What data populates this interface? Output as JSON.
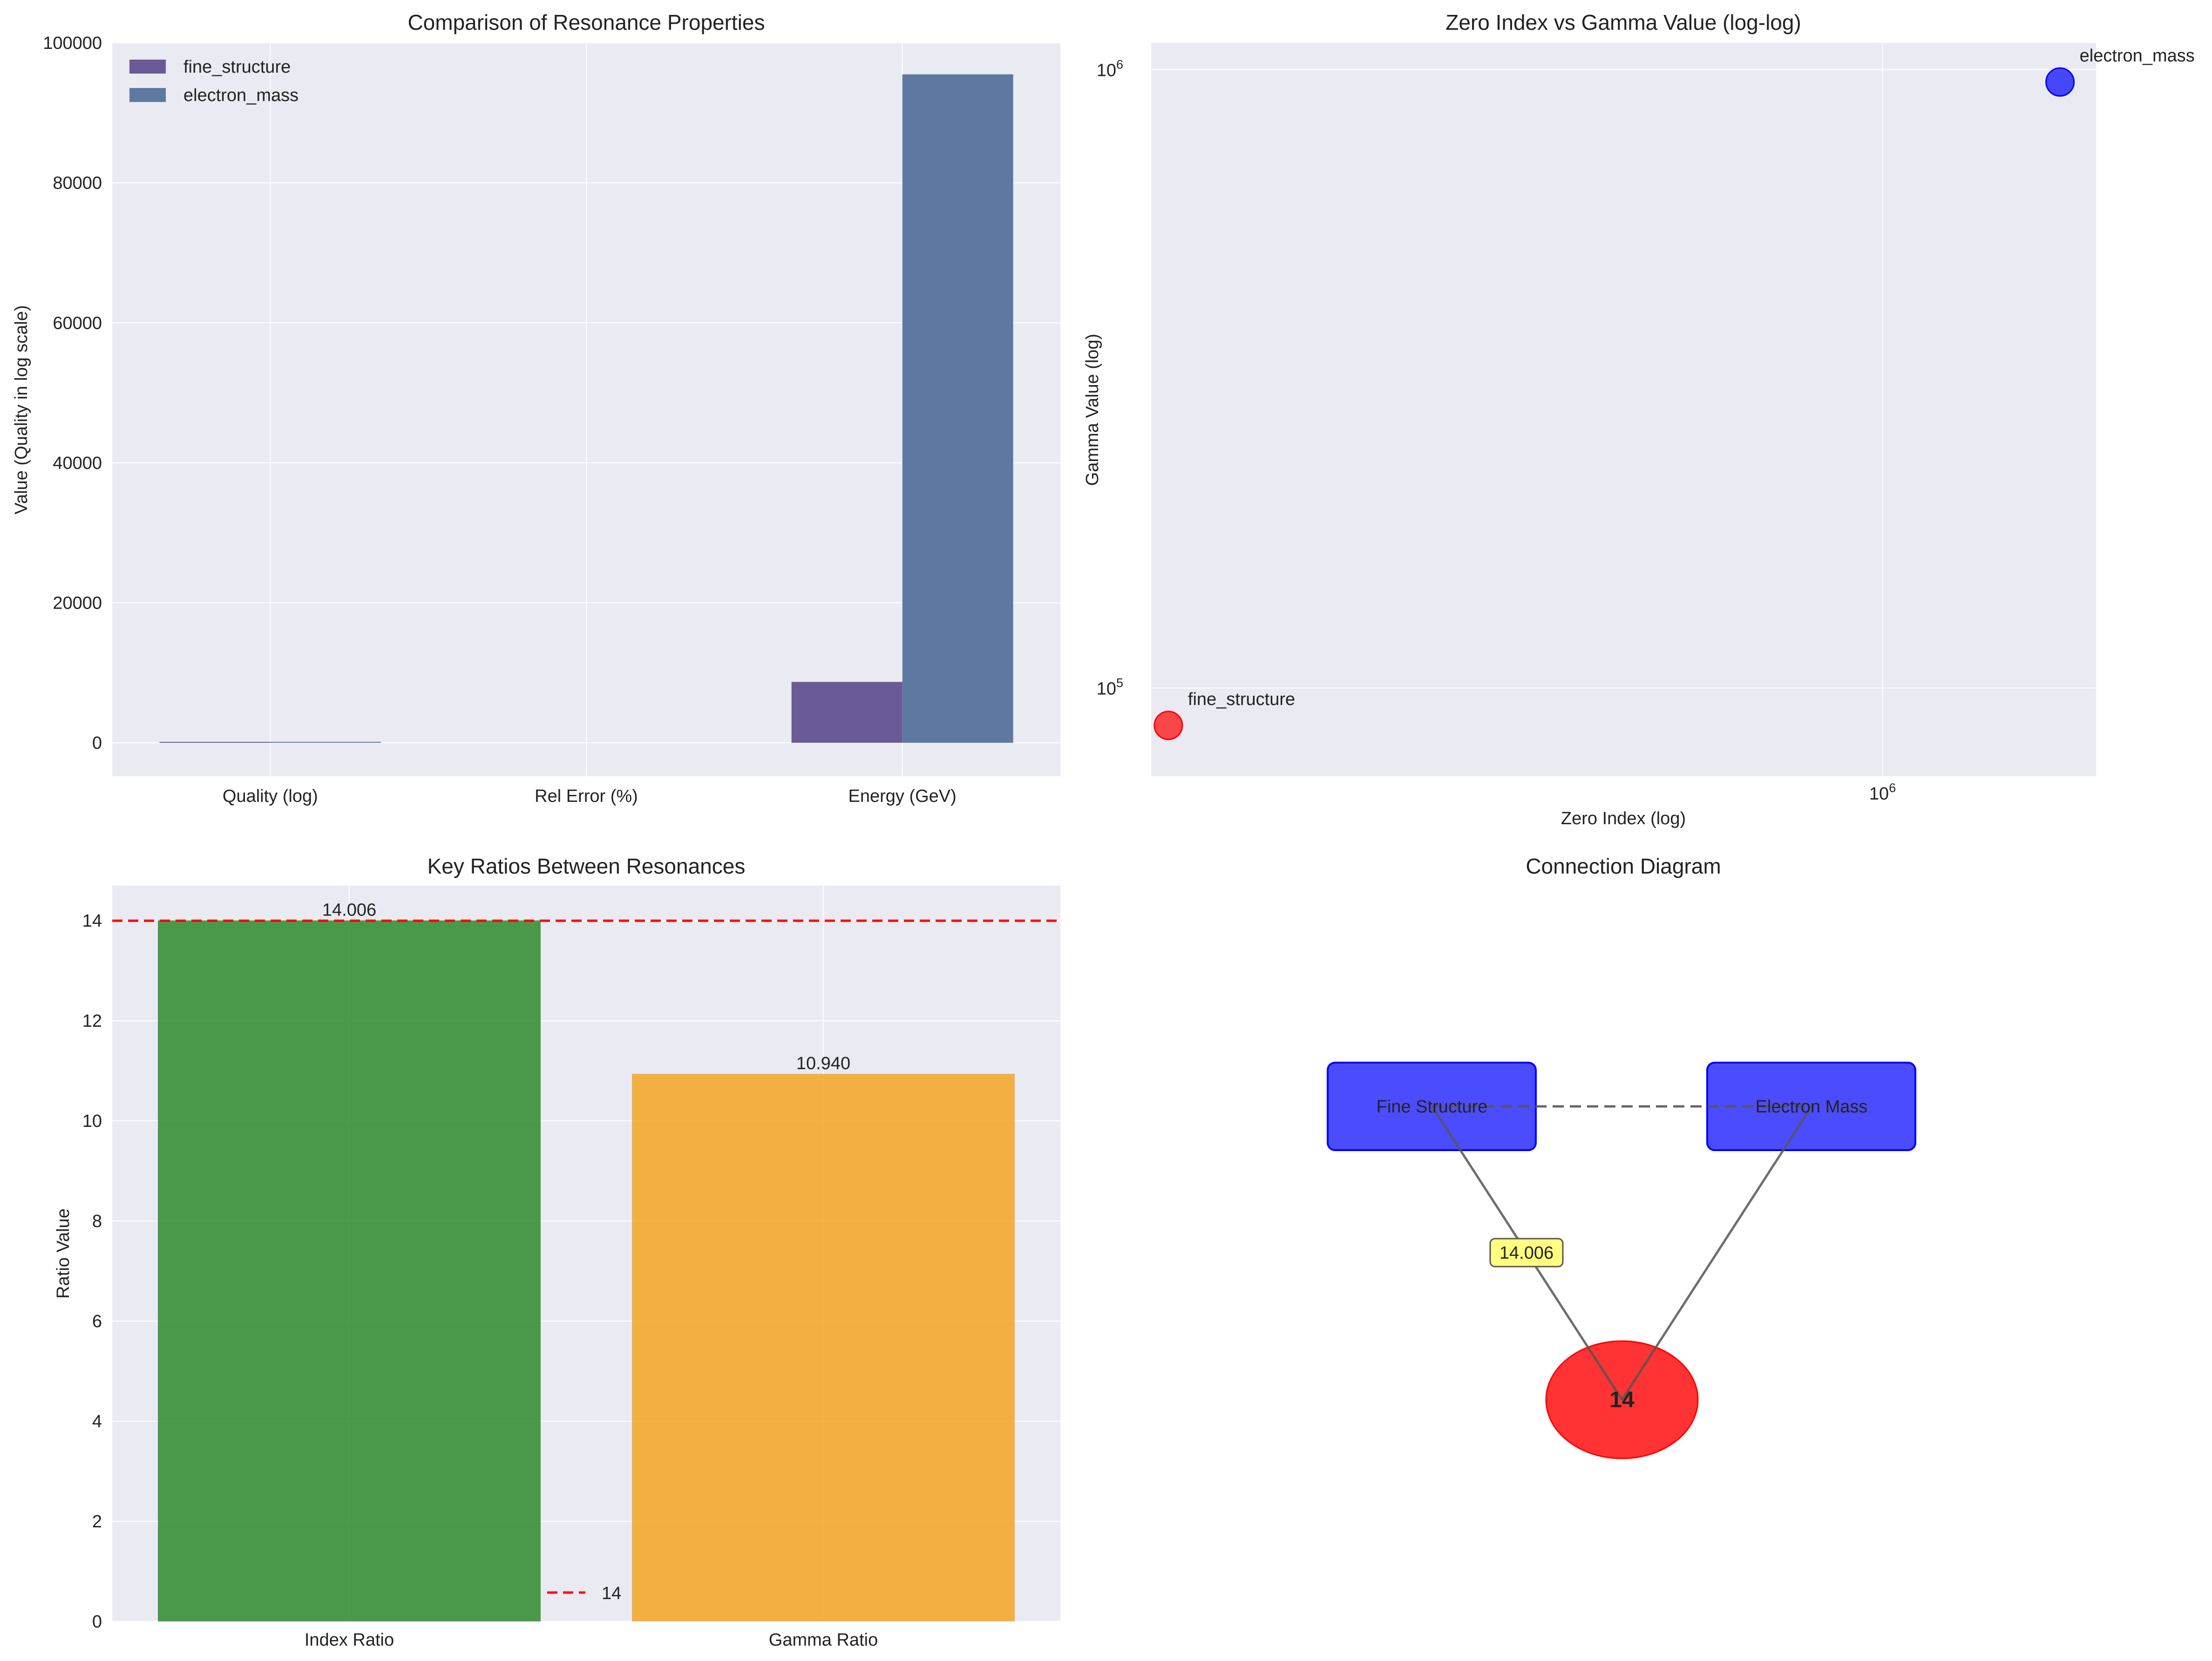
{
  "figure": {
    "background": "#ffffff",
    "plot_background": "#eaeaf2",
    "grid_color": "#ffffff"
  },
  "chart_data": [
    {
      "type": "bar",
      "title": "Comparison of Resonance Properties",
      "xlabel": "",
      "ylabel": "Value (Quality in log scale)",
      "categories": [
        "Quality (log)",
        "Rel Error (%)",
        "Energy (GeV)"
      ],
      "series": [
        {
          "name": "fine_structure",
          "color": "#6a5a96",
          "values": [
            9,
            0,
            8700
          ]
        },
        {
          "name": "electron_mass",
          "color": "#5e79a1",
          "values": [
            10,
            0,
            95500
          ]
        }
      ],
      "ylim": [
        -4780,
        100000
      ],
      "yticks": [
        0,
        20000,
        40000,
        60000,
        80000,
        100000
      ],
      "grid": true,
      "legend": "top-left"
    },
    {
      "type": "scatter",
      "title": "Zero Index vs Gamma Value (log-log)",
      "xlabel": "Zero Index (log)",
      "ylabel": "Gamma Value (log)",
      "xscale": "log",
      "yscale": "log",
      "xlim": [
        115000,
        1880000
      ],
      "ylim": [
        72000,
        1105000
      ],
      "xticks": [
        {
          "value": 1000000,
          "label": "10^6"
        }
      ],
      "yticks": [
        {
          "value": 100000,
          "label": "10^5"
        },
        {
          "value": 1000000,
          "label": "10^6"
        }
      ],
      "points": [
        {
          "label": "fine_structure",
          "x": 121000,
          "y": 87000,
          "color": "#ff0000"
        },
        {
          "label": "electron_mass",
          "x": 1690000,
          "y": 955000,
          "color": "#0000ff"
        }
      ],
      "grid": true
    },
    {
      "type": "bar",
      "title": "Key Ratios Between Resonances",
      "xlabel": "",
      "ylabel": "Ratio Value",
      "categories": [
        "Index Ratio",
        "Gamma Ratio"
      ],
      "values": [
        14.006,
        10.94
      ],
      "value_labels": [
        "14.006",
        "10.940"
      ],
      "colors": [
        "#2e8b2e",
        "#f5a623"
      ],
      "reference_line": {
        "value": 14,
        "label": "14",
        "color": "#ff0000"
      },
      "ylim": [
        0,
        14.7
      ],
      "yticks": [
        0,
        2,
        4,
        6,
        8,
        10,
        12,
        14
      ],
      "grid": true,
      "legend": "lower-center"
    },
    {
      "type": "diagram",
      "title": "Connection Diagram",
      "nodes": [
        {
          "id": "fine",
          "label": "Fine Structure",
          "shape": "box",
          "color": "#0000ff"
        },
        {
          "id": "electron",
          "label": "Electron Mass",
          "shape": "box",
          "color": "#0000ff"
        },
        {
          "id": "hub",
          "label": "14",
          "shape": "ellipse",
          "color": "#ff0000"
        }
      ],
      "edges": [
        {
          "from": "fine",
          "to": "electron",
          "style": "dashed"
        },
        {
          "from": "fine",
          "to": "hub",
          "style": "solid"
        },
        {
          "from": "electron",
          "to": "hub",
          "style": "solid"
        }
      ],
      "edge_label": {
        "text": "14.006",
        "color": "#ffff80"
      }
    }
  ]
}
